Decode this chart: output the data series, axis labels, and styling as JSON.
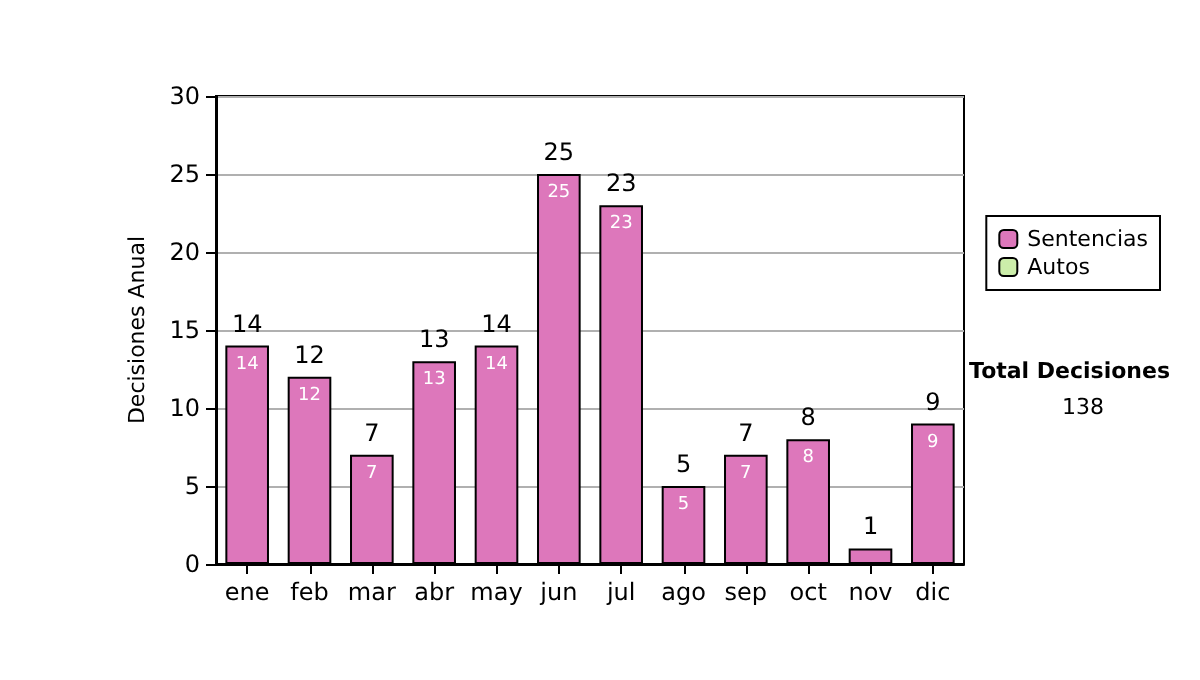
{
  "chart_data": {
    "type": "bar",
    "stacked": true,
    "ylabel": "Decisiones Anual",
    "categories": [
      "ene",
      "feb",
      "mar",
      "abr",
      "may",
      "jun",
      "jul",
      "ago",
      "sep",
      "oct",
      "nov",
      "dic"
    ],
    "series": [
      {
        "name": "Sentencias",
        "color": "#dd77bb",
        "values": [
          14,
          12,
          7,
          13,
          14,
          25,
          23,
          5,
          7,
          8,
          1,
          9
        ],
        "value_labels": [
          "14",
          "12",
          "7",
          "13",
          "14",
          "25",
          "23",
          "5",
          "7",
          "8",
          null,
          "9"
        ]
      },
      {
        "name": "Autos",
        "color": "#cceeaa",
        "values": [
          0,
          0,
          0,
          0,
          0,
          0,
          0,
          0,
          0,
          0,
          0,
          0
        ]
      }
    ],
    "totals": [
      "14",
      "12",
      "7",
      "13",
      "14",
      "25",
      "23",
      "5",
      "7",
      "8",
      "1",
      "9"
    ],
    "ylim": [
      0,
      30
    ],
    "yticks": [
      0,
      5,
      10,
      15,
      20,
      25,
      30
    ],
    "grid": "y",
    "legend": "right",
    "annotations": [
      "Total Decisiones",
      "138"
    ]
  }
}
